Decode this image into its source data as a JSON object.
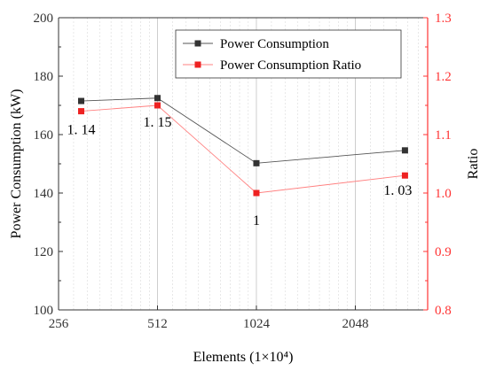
{
  "chart_data": {
    "type": "line",
    "xlabel": "Elements (1×10⁴)",
    "ylabel_left": "Power Consumption (kW)",
    "ylabel_right": "Ratio",
    "x_scale": "log2",
    "x_ticks": [
      256,
      512,
      1024,
      2048
    ],
    "x_tick_labels": [
      "256",
      "512",
      "1024",
      "2048"
    ],
    "xlim": [
      256,
      3400
    ],
    "ylim_left": [
      100,
      200
    ],
    "y_ticks_left": [
      100,
      120,
      140,
      160,
      180,
      200
    ],
    "ylim_right": [
      0.8,
      1.3
    ],
    "y_ticks_right": [
      "0.8",
      "0.9",
      "1.0",
      "1.1",
      "1.2",
      "1.3"
    ],
    "grid": "x-minor-vertical",
    "legend_position": "top-right",
    "series": [
      {
        "name": "Power Consumption",
        "axis": "left",
        "color": "#555555",
        "marker_color": "#333333",
        "x": [
          300,
          512,
          1024,
          2900
        ],
        "values": [
          171.5,
          172.5,
          150.2,
          154.6
        ]
      },
      {
        "name": "Power Consumption Ratio",
        "axis": "right",
        "color": "#ff8080",
        "marker_color": "#ee2222",
        "x": [
          300,
          512,
          1024,
          2900
        ],
        "values": [
          1.14,
          1.15,
          1.0,
          1.03
        ],
        "data_labels": [
          "1. 14",
          "1. 15",
          "1",
          "1. 03"
        ]
      }
    ],
    "right_axis_color": "#ff3333"
  }
}
